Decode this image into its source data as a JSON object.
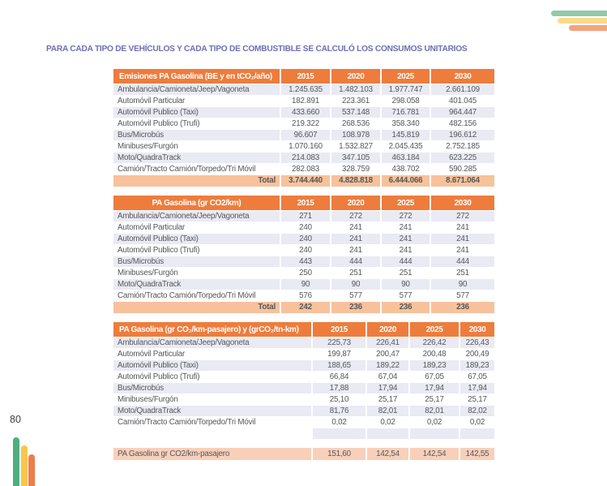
{
  "page": {
    "number": "80",
    "title": "PARA CADA TIPO DE VEHÍCULOS Y CADA TIPO DE COMBUSTIBLE SE CALCULÓ LOS CONSUMOS UNITARIOS"
  },
  "colors": {
    "header_orange": "#EE7C3D",
    "total_row_bg": "#F7C29B",
    "stripe_row_bg": "#E9EAF3",
    "summary_row_bg": "#F8D0BA",
    "title_text": "#6E6FB4",
    "body_text": "#56575A",
    "deco_green_light": "#93C9A6",
    "deco_yellow_light": "#FBD98D",
    "deco_orange_light": "#F3A47E",
    "deco_green": "#4FAE7F",
    "deco_yellow": "#F7C64A",
    "deco_orange": "#EC7F4A"
  },
  "tables": [
    {
      "title": "Emisiones PA Gasolina (BE y en tCO₂/año)",
      "title_align": "left",
      "years": [
        "2015",
        "2020",
        "2025",
        "2030"
      ],
      "rows": [
        {
          "label": "Ambulancia/Camioneta/Jeep/Vagoneta",
          "values": [
            "1.245.635",
            "1.482.103",
            "1.977.747",
            "2.661.109"
          ]
        },
        {
          "label": "Automóvil Particular",
          "values": [
            "182.891",
            "223.361",
            "298.058",
            "401.045"
          ]
        },
        {
          "label": "Automóvil Publico (Taxi)",
          "values": [
            "433.660",
            "537.148",
            "716.781",
            "964.447"
          ]
        },
        {
          "label": "Automóvil Publico (Trufi)",
          "values": [
            "219.322",
            "268.536",
            "358.340",
            "482.156"
          ]
        },
        {
          "label": "Bus/Microbús",
          "values": [
            "96.607",
            "108.978",
            "145.819",
            "196.612"
          ]
        },
        {
          "label": "Minibuses/Furgón",
          "values": [
            "1.070.160",
            "1.532.827",
            "2.045.435",
            "2.752.185"
          ]
        },
        {
          "label": "Moto/QuadraTrack",
          "values": [
            "214.083",
            "347.105",
            "463.184",
            "623.225"
          ]
        },
        {
          "label": "Camión/Tracto Camión/Torpedo/Tri Móvil",
          "values": [
            "282.083",
            "328.759",
            "438.702",
            "590.285"
          ]
        }
      ],
      "total": {
        "label": "Total",
        "values": [
          "3.744.440",
          "4.828.818",
          "6.444.066",
          "8.671.064"
        ]
      }
    },
    {
      "title": "PA Gasolina (gr CO2/km)",
      "title_align": "center",
      "years": [
        "2015",
        "2020",
        "2025",
        "2030"
      ],
      "rows": [
        {
          "label": "Ambulancia/Camioneta/Jeep/Vagoneta",
          "values": [
            "271",
            "272",
            "272",
            "272"
          ]
        },
        {
          "label": "Automóvil Particular",
          "values": [
            "240",
            "241",
            "241",
            "241"
          ]
        },
        {
          "label": "Automóvil Publico (Taxi)",
          "values": [
            "240",
            "241",
            "241",
            "241"
          ]
        },
        {
          "label": "Automóvil Publico (Trufi)",
          "values": [
            "240",
            "241",
            "241",
            "241"
          ]
        },
        {
          "label": "Bus/Microbús",
          "values": [
            "443",
            "444",
            "444",
            "444"
          ]
        },
        {
          "label": "Minibuses/Furgón",
          "values": [
            "250",
            "251",
            "251",
            "251"
          ]
        },
        {
          "label": "Moto/QuadraTrack",
          "values": [
            "90",
            "90",
            "90",
            "90"
          ]
        },
        {
          "label": "Camión/Tracto Camión/Torpedo/Tri Móvil",
          "values": [
            "576",
            "577",
            "577",
            "577"
          ]
        }
      ],
      "total": {
        "label": "Total",
        "values": [
          "242",
          "236",
          "236",
          "236"
        ]
      }
    },
    {
      "title": "PA Gasolina (gr CO₂/km-pasajero) y (grCO₂/tn-km)",
      "title_align": "left",
      "years": [
        "2015",
        "2020",
        "2025",
        "2030"
      ],
      "rows": [
        {
          "label": "Ambulancia/Camioneta/Jeep/Vagoneta",
          "values": [
            "225,73",
            "226,41",
            "226,42",
            "226,43"
          ]
        },
        {
          "label": "Automóvil Particular",
          "values": [
            "199,87",
            "200,47",
            "200,48",
            "200,49"
          ]
        },
        {
          "label": "Automóvil Publico (Taxi)",
          "values": [
            "188,65",
            "189,22",
            "189,23",
            "189,23"
          ]
        },
        {
          "label": "Automóvil Publico (Trufi)",
          "values": [
            "66,84",
            "67,04",
            "67,05",
            "67,05"
          ]
        },
        {
          "label": "Bus/Microbús",
          "values": [
            "17,88",
            "17,94",
            "17,94",
            "17,94"
          ]
        },
        {
          "label": "Minibuses/Furgón",
          "values": [
            "25,10",
            "25,17",
            "25,17",
            "25,17"
          ]
        },
        {
          "label": "Moto/QuadraTrack",
          "values": [
            "81,76",
            "82,01",
            "82,01",
            "82,02"
          ]
        },
        {
          "label": "Camión/Tracto Camión/Torpedo/Tri Móvil",
          "values": [
            "0,02",
            "0,02",
            "0,02",
            "0,02"
          ]
        },
        {
          "label": "",
          "empty": true,
          "values": [
            "",
            "",
            "",
            ""
          ]
        }
      ],
      "summary": {
        "label": "PA Gasolina gr CO2/km-pasajero",
        "values": [
          "151,60",
          "142,54",
          "142,54",
          "142,55"
        ]
      }
    }
  ]
}
